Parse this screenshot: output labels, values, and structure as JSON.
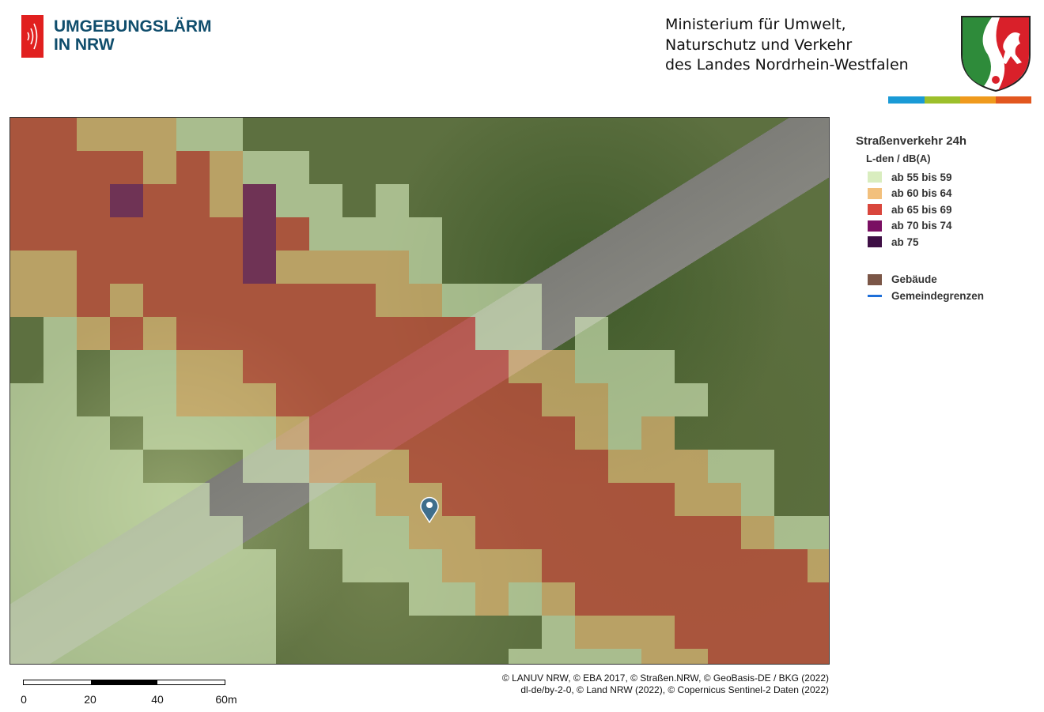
{
  "header": {
    "logo_line1": "UMGEBUNGSLÄRM",
    "logo_line2": "IN NRW",
    "ministry": [
      "Ministerium für Umwelt,",
      "Naturschutz und Verkehr",
      "des Landes Nordrhein-Westfalen"
    ],
    "stripe_colors": [
      "#1a9ad6",
      "#9cbf2b",
      "#ef9a1d",
      "#e2571f"
    ]
  },
  "legend": {
    "title": "Straßenverkehr 24h",
    "unit": "L-den / dB(A)",
    "classes": [
      {
        "label": "ab 55 bis 59",
        "color": "#d9edbf"
      },
      {
        "label": "ab 60 bis 64",
        "color": "#f2c07d"
      },
      {
        "label": "ab 65 bis 69",
        "color": "#d9463c"
      },
      {
        "label": "ab 70 bis 74",
        "color": "#7a0f63"
      },
      {
        "label": "ab 75",
        "color": "#3e0f45"
      }
    ],
    "extra": [
      {
        "label": "Gebäude",
        "color": "#7b5647",
        "icon": "square"
      },
      {
        "label": "Gemeindegrenzen",
        "color": "#1e6fd9",
        "icon": "line"
      }
    ]
  },
  "scale": {
    "ticks": [
      "0",
      "20",
      "40",
      "60m"
    ]
  },
  "credits": [
    "© LANUV NRW, © EBA 2017, © Straßen.NRW, © GeoBasis-DE / BKG (2022)",
    "dl-de/by-2-0, © Land NRW (2022), © Copernicus Sentinel-2 Daten (2022)"
  ],
  "map": {
    "marker": "location-pin-icon"
  }
}
